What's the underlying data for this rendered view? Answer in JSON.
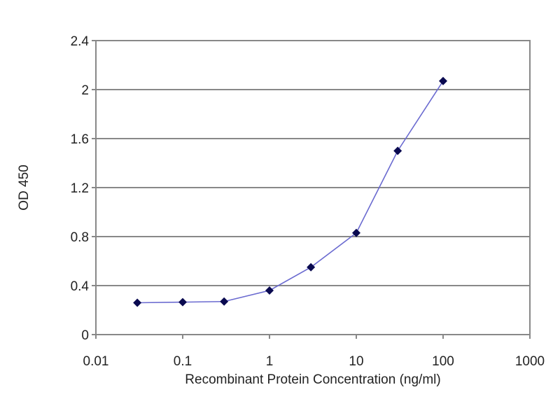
{
  "chart_data": {
    "type": "line",
    "title": "",
    "xlabel": "Recombinant Protein Concentration (ng/ml)",
    "ylabel": "OD 450",
    "x_scale": "log",
    "xlim": [
      0.01,
      1000
    ],
    "ylim": [
      0,
      2.4
    ],
    "x_ticks": [
      "0.01",
      "0.1",
      "1",
      "10",
      "100",
      "1000"
    ],
    "y_ticks": [
      "0",
      "0.4",
      "0.8",
      "1.2",
      "1.6",
      "2",
      "2.4"
    ],
    "grid": "horizontal",
    "series": [
      {
        "x": [
          0.03,
          0.1,
          0.3,
          1,
          3,
          10,
          30,
          100
        ],
        "y": [
          0.26,
          0.265,
          0.27,
          0.36,
          0.55,
          0.83,
          1.5,
          2.07
        ],
        "line_color": "#6a6ad0",
        "marker_color": "#0a0a50"
      }
    ]
  }
}
